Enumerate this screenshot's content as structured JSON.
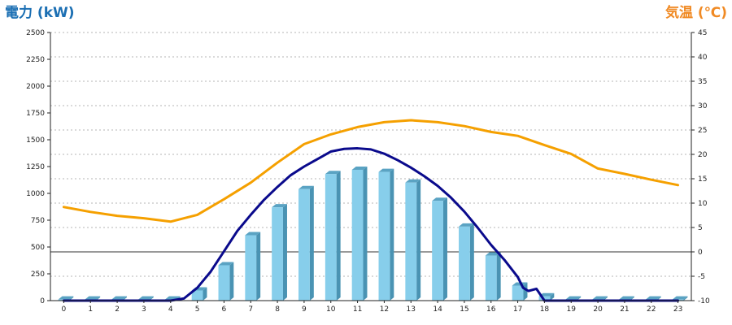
{
  "chart_data": {
    "type": "bar+line",
    "left_axis_title": "電力 (kW)",
    "right_axis_title": "気温 (℃)",
    "categories": [
      "0",
      "1",
      "2",
      "3",
      "4",
      "5",
      "6",
      "7",
      "8",
      "9",
      "10",
      "11",
      "12",
      "13",
      "14",
      "15",
      "16",
      "17",
      "18",
      "19",
      "20",
      "21",
      "22",
      "23"
    ],
    "ylim_left": [
      0,
      2500
    ],
    "yticks_left": [
      "0",
      "250",
      "500",
      "750",
      "1000",
      "1250",
      "1500",
      "1750",
      "2000",
      "2250",
      "2500"
    ],
    "ylim_right": [
      -10,
      45
    ],
    "yticks_right": [
      "-10",
      "-5",
      "0",
      "5",
      "10",
      "15",
      "20",
      "25",
      "30",
      "35",
      "40",
      "45"
    ],
    "grid": true,
    "reference_line_right": 0,
    "bars": {
      "axis": "left",
      "color": "#87ceeb",
      "values": [
        10,
        10,
        10,
        10,
        10,
        95,
        330,
        610,
        870,
        1040,
        1180,
        1220,
        1200,
        1100,
        930,
        690,
        420,
        140,
        40,
        10,
        10,
        10,
        10,
        10
      ]
    },
    "series": [
      {
        "axis": "left",
        "color": "#0a0a8c",
        "x": [
          0,
          1,
          2,
          3,
          4,
          4.5,
          5,
          5.5,
          6,
          6.5,
          7,
          7.5,
          8,
          8.5,
          9,
          9.5,
          10,
          10.5,
          11,
          11.5,
          12,
          12.5,
          13,
          13.5,
          14,
          14.5,
          15,
          15.5,
          16,
          16.5,
          17,
          17.2,
          17.4,
          17.7,
          18,
          19,
          20,
          21,
          22,
          23
        ],
        "values": [
          0,
          0,
          0,
          0,
          0,
          20,
          120,
          270,
          460,
          650,
          800,
          940,
          1060,
          1170,
          1250,
          1320,
          1390,
          1415,
          1420,
          1410,
          1370,
          1310,
          1240,
          1160,
          1070,
          960,
          830,
          680,
          520,
          380,
          220,
          120,
          90,
          110,
          0,
          0,
          0,
          0,
          0,
          0
        ]
      },
      {
        "axis": "right",
        "color": "#f5a000",
        "x": [
          0,
          1,
          2,
          3,
          4,
          5,
          6,
          7,
          8,
          9,
          10,
          11,
          12,
          13,
          14,
          15,
          16,
          17,
          18,
          19,
          20,
          21,
          22,
          23
        ],
        "values": [
          9.2,
          8.2,
          7.4,
          6.9,
          6.2,
          7.6,
          10.8,
          14.2,
          18.3,
          22.1,
          24.1,
          25.6,
          26.6,
          27.0,
          26.6,
          25.8,
          24.6,
          23.8,
          21.9,
          20.1,
          17.1,
          16.0,
          14.8,
          13.7
        ]
      }
    ]
  }
}
